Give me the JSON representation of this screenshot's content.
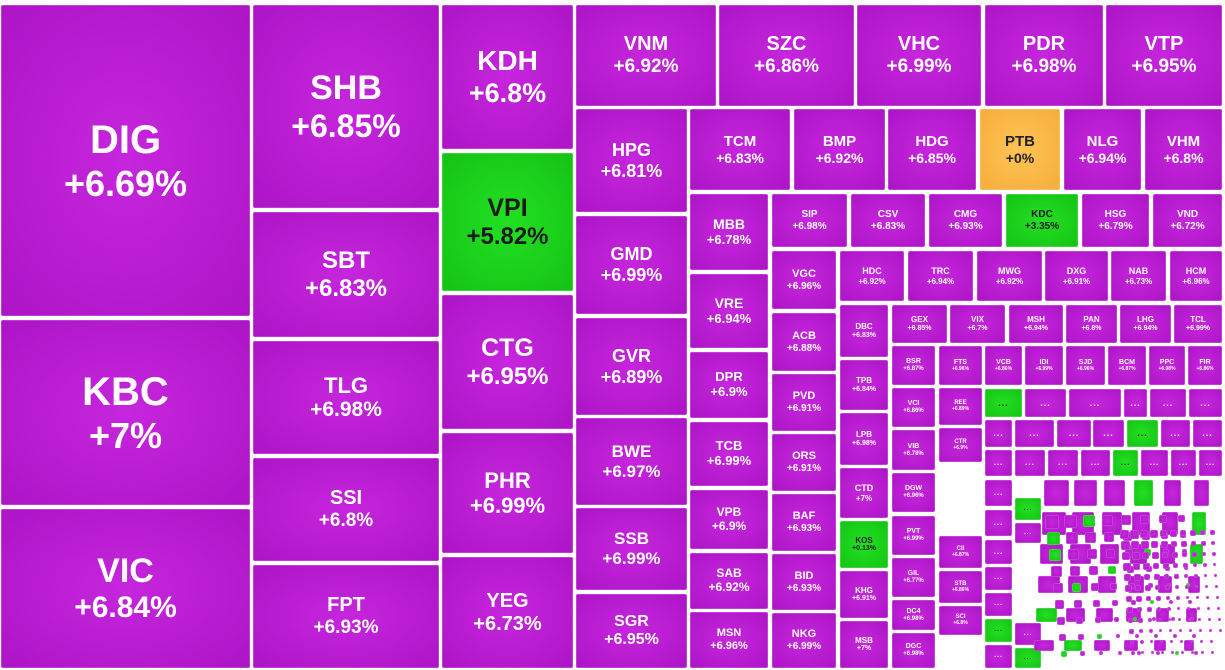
{
  "chart_data": {
    "type": "treemap",
    "title": "",
    "colors": {
      "up": "#b617cc",
      "strong_green": "#18c918",
      "reference": "#f7b13f"
    },
    "tiles": [
      {
        "ticker": "DIG",
        "change": "+6.69%",
        "color": "up"
      },
      {
        "ticker": "KBC",
        "change": "+7%",
        "color": "up"
      },
      {
        "ticker": "VIC",
        "change": "+6.84%",
        "color": "up"
      },
      {
        "ticker": "SHB",
        "change": "+6.85%",
        "color": "up"
      },
      {
        "ticker": "SBT",
        "change": "+6.83%",
        "color": "up"
      },
      {
        "ticker": "TLG",
        "change": "+6.98%",
        "color": "up"
      },
      {
        "ticker": "SSI",
        "change": "+6.8%",
        "color": "up"
      },
      {
        "ticker": "FPT",
        "change": "+6.93%",
        "color": "up"
      },
      {
        "ticker": "KDH",
        "change": "+6.8%",
        "color": "up"
      },
      {
        "ticker": "VPI",
        "change": "+5.82%",
        "color": "green"
      },
      {
        "ticker": "CTG",
        "change": "+6.95%",
        "color": "up"
      },
      {
        "ticker": "PHR",
        "change": "+6.99%",
        "color": "up"
      },
      {
        "ticker": "YEG",
        "change": "+6.73%",
        "color": "up"
      },
      {
        "ticker": "VNM",
        "change": "+6.92%",
        "color": "up"
      },
      {
        "ticker": "SZC",
        "change": "+6.86%",
        "color": "up"
      },
      {
        "ticker": "VHC",
        "change": "+6.99%",
        "color": "up"
      },
      {
        "ticker": "PDR",
        "change": "+6.98%",
        "color": "up"
      },
      {
        "ticker": "VTP",
        "change": "+6.95%",
        "color": "up"
      },
      {
        "ticker": "HPG",
        "change": "+6.81%",
        "color": "up"
      },
      {
        "ticker": "GMD",
        "change": "+6.99%",
        "color": "up"
      },
      {
        "ticker": "GVR",
        "change": "+6.89%",
        "color": "up"
      },
      {
        "ticker": "BWE",
        "change": "+6.97%",
        "color": "up"
      },
      {
        "ticker": "SSB",
        "change": "+6.99%",
        "color": "up"
      },
      {
        "ticker": "SGR",
        "change": "+6.95%",
        "color": "up"
      },
      {
        "ticker": "TCM",
        "change": "+6.83%",
        "color": "up"
      },
      {
        "ticker": "BMP",
        "change": "+6.92%",
        "color": "up"
      },
      {
        "ticker": "HDG",
        "change": "+6.85%",
        "color": "up"
      },
      {
        "ticker": "PTB",
        "change": "+0%",
        "color": "reference"
      },
      {
        "ticker": "NLG",
        "change": "+6.94%",
        "color": "up"
      },
      {
        "ticker": "VHM",
        "change": "+6.8%",
        "color": "up"
      },
      {
        "ticker": "MBB",
        "change": "+6.78%",
        "color": "up"
      },
      {
        "ticker": "VRE",
        "change": "+6.94%",
        "color": "up"
      },
      {
        "ticker": "DPR",
        "change": "+6.9%",
        "color": "up"
      },
      {
        "ticker": "TCB",
        "change": "+6.99%",
        "color": "up"
      },
      {
        "ticker": "VPB",
        "change": "+6.9%",
        "color": "up"
      },
      {
        "ticker": "SAB",
        "change": "+6.92%",
        "color": "up"
      },
      {
        "ticker": "MSN",
        "change": "+6.96%",
        "color": "up"
      },
      {
        "ticker": "SIP",
        "change": "+6.98%",
        "color": "up"
      },
      {
        "ticker": "CSV",
        "change": "+6.83%",
        "color": "up"
      },
      {
        "ticker": "CMG",
        "change": "+6.93%",
        "color": "up"
      },
      {
        "ticker": "KDC",
        "change": "+3.35%",
        "color": "green"
      },
      {
        "ticker": "HSG",
        "change": "+6.79%",
        "color": "up"
      },
      {
        "ticker": "VND",
        "change": "+6.72%",
        "color": "up"
      },
      {
        "ticker": "VGC",
        "change": "+6.96%",
        "color": "up"
      },
      {
        "ticker": "ACB",
        "change": "+6.88%",
        "color": "up"
      },
      {
        "ticker": "PVD",
        "change": "+6.91%",
        "color": "up"
      },
      {
        "ticker": "ORS",
        "change": "+6.91%",
        "color": "up"
      },
      {
        "ticker": "BAF",
        "change": "+6.93%",
        "color": "up"
      },
      {
        "ticker": "BID",
        "change": "+6.93%",
        "color": "up"
      },
      {
        "ticker": "NKG",
        "change": "+6.99%",
        "color": "up"
      },
      {
        "ticker": "HDC",
        "change": "+6.92%",
        "color": "up"
      },
      {
        "ticker": "TRC",
        "change": "+6.94%",
        "color": "up"
      },
      {
        "ticker": "MWG",
        "change": "+6.92%",
        "color": "up"
      },
      {
        "ticker": "DXG",
        "change": "+6.91%",
        "color": "up"
      },
      {
        "ticker": "NAB",
        "change": "+6.73%",
        "color": "up"
      },
      {
        "ticker": "HCM",
        "change": "+6.96%",
        "color": "up"
      },
      {
        "ticker": "DBC",
        "change": "+6.83%",
        "color": "up"
      },
      {
        "ticker": "GEX",
        "change": "+6.85%",
        "color": "up"
      },
      {
        "ticker": "VIX",
        "change": "+6.7%",
        "color": "up"
      },
      {
        "ticker": "MSH",
        "change": "+6.94%",
        "color": "up"
      },
      {
        "ticker": "PAN",
        "change": "+6.8%",
        "color": "up"
      },
      {
        "ticker": "LHG",
        "change": "+6.94%",
        "color": "up"
      },
      {
        "ticker": "TCL",
        "change": "+6.99%",
        "color": "up"
      },
      {
        "ticker": "TPB",
        "change": "+6.84%",
        "color": "up"
      },
      {
        "ticker": "LPB",
        "change": "+6.98%",
        "color": "up"
      },
      {
        "ticker": "CTD",
        "change": "+7%",
        "color": "up"
      },
      {
        "ticker": "KOS",
        "change": "+0.13%",
        "color": "green"
      },
      {
        "ticker": "KHG",
        "change": "+6.91%",
        "color": "up"
      },
      {
        "ticker": "MSB",
        "change": "+7%",
        "color": "up"
      },
      {
        "ticker": "BSR",
        "change": "+6.87%",
        "color": "up"
      },
      {
        "ticker": "VCI",
        "change": "+6.86%",
        "color": "up"
      },
      {
        "ticker": "VIB",
        "change": "+6.78%",
        "color": "up"
      },
      {
        "ticker": "DGW",
        "change": "+6.96%",
        "color": "up"
      },
      {
        "ticker": "PVT",
        "change": "+6.99%",
        "color": "up"
      },
      {
        "ticker": "GIL",
        "change": "+6.77%",
        "color": "up"
      },
      {
        "ticker": "DC4",
        "change": "+6.98%",
        "color": "up"
      },
      {
        "ticker": "DGC",
        "change": "+6.98%",
        "color": "up"
      },
      {
        "ticker": "FTS",
        "change": "+6.96%",
        "color": "up"
      },
      {
        "ticker": "VCB",
        "change": "+6.86%",
        "color": "up"
      },
      {
        "ticker": "IDI",
        "change": "+6.99%",
        "color": "up"
      },
      {
        "ticker": "SJD",
        "change": "+6.96%",
        "color": "up"
      },
      {
        "ticker": "BCM",
        "change": "+6.87%",
        "color": "up"
      },
      {
        "ticker": "PPC",
        "change": "+6.98%",
        "color": "up"
      },
      {
        "ticker": "FIR",
        "change": "+6.86%",
        "color": "up"
      },
      {
        "ticker": "REE",
        "change": "+6.89%",
        "color": "up"
      },
      {
        "ticker": "CTR",
        "change": "+6.9%",
        "color": "up"
      },
      {
        "ticker": "CII",
        "change": "+6.87%",
        "color": "up"
      },
      {
        "ticker": "STB",
        "change": "+6.86%",
        "color": "up"
      },
      {
        "ticker": "SCI",
        "change": "+6.8%",
        "color": "up"
      }
    ],
    "small_tiles": [
      {
        "label": "...",
        "color": "green"
      },
      {
        "label": "...",
        "color": "up"
      },
      {
        "label": "...",
        "color": "up"
      },
      {
        "label": "...",
        "color": "up"
      },
      {
        "label": "...",
        "color": "up"
      },
      {
        "label": "...",
        "color": "up"
      },
      {
        "label": "...",
        "color": "up"
      },
      {
        "label": "...",
        "color": "up"
      },
      {
        "label": "...",
        "color": "up"
      },
      {
        "label": "...",
        "color": "up"
      },
      {
        "label": "...",
        "color": "green"
      },
      {
        "label": "...",
        "color": "up"
      },
      {
        "label": "...",
        "color": "up"
      },
      {
        "label": "...",
        "color": "up"
      },
      {
        "label": "...",
        "color": "up"
      },
      {
        "label": "...",
        "color": "up"
      },
      {
        "label": "...",
        "color": "up"
      },
      {
        "label": "...",
        "color": "green"
      },
      {
        "label": "...",
        "color": "up"
      },
      {
        "label": "...",
        "color": "up"
      },
      {
        "label": "...",
        "color": "up"
      },
      {
        "label": "...",
        "color": "up"
      },
      {
        "label": "...",
        "color": "up"
      },
      {
        "label": "...",
        "color": "up"
      },
      {
        "label": "...",
        "color": "up"
      },
      {
        "label": "...",
        "color": "up"
      },
      {
        "label": "...",
        "color": "green"
      },
      {
        "label": "...",
        "color": "up"
      },
      {
        "label": "...",
        "color": "green"
      },
      {
        "label": "...",
        "color": "up"
      },
      {
        "label": "...",
        "color": "up"
      },
      {
        "label": "...",
        "color": "green"
      }
    ]
  }
}
